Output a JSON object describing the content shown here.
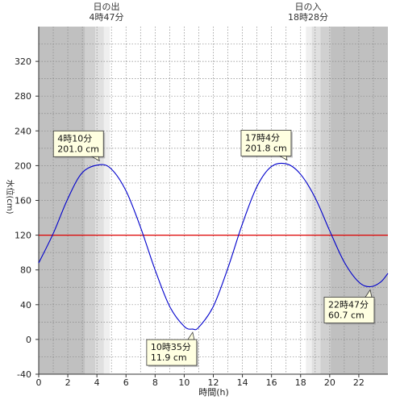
{
  "chart_data": {
    "type": "line",
    "xlabel": "時間(h)",
    "ylabel": "水位(cm)",
    "xlim": [
      0,
      24
    ],
    "ylim": [
      -40,
      360
    ],
    "x_ticks": [
      0,
      2,
      4,
      6,
      8,
      10,
      12,
      14,
      16,
      18,
      20,
      22
    ],
    "y_ticks": [
      -40,
      0,
      40,
      80,
      120,
      160,
      200,
      240,
      280,
      320
    ],
    "grid": true,
    "reference_line": {
      "value": 120,
      "color": "#dd0000"
    },
    "line_color": "#0000cc",
    "sunrise": {
      "label": "日の出",
      "time_label": "4時47分",
      "hour": 4.783
    },
    "sunset": {
      "label": "日の入",
      "time_label": "18時28分",
      "hour": 18.467
    },
    "series": [
      {
        "points": [
          [
            0,
            88
          ],
          [
            1,
            122
          ],
          [
            2,
            162
          ],
          [
            3,
            192
          ],
          [
            4.17,
            201.0
          ],
          [
            5,
            196
          ],
          [
            6,
            171
          ],
          [
            7,
            129
          ],
          [
            8,
            80
          ],
          [
            9,
            38
          ],
          [
            10,
            15
          ],
          [
            10.58,
            11.9
          ],
          [
            11,
            14
          ],
          [
            12,
            38
          ],
          [
            13,
            82
          ],
          [
            14,
            133
          ],
          [
            15,
            176
          ],
          [
            16,
            199
          ],
          [
            17.07,
            201.8
          ],
          [
            18,
            190
          ],
          [
            19,
            163
          ],
          [
            20,
            125
          ],
          [
            21,
            89
          ],
          [
            22,
            66
          ],
          [
            22.78,
            60.7
          ],
          [
            23.5,
            66
          ],
          [
            24,
            76
          ]
        ]
      }
    ],
    "annotations": [
      {
        "x": 4.17,
        "y": 201.0,
        "time": "4時10分",
        "value": "201.0 cm",
        "box": "above"
      },
      {
        "x": 10.58,
        "y": 11.9,
        "time": "10時35分",
        "value": "11.9 cm",
        "box": "below"
      },
      {
        "x": 17.07,
        "y": 201.8,
        "time": "17時4分",
        "value": "201.8 cm",
        "box": "above"
      },
      {
        "x": 22.78,
        "y": 60.7,
        "time": "22時47分",
        "value": "60.7 cm",
        "box": "below"
      }
    ]
  }
}
